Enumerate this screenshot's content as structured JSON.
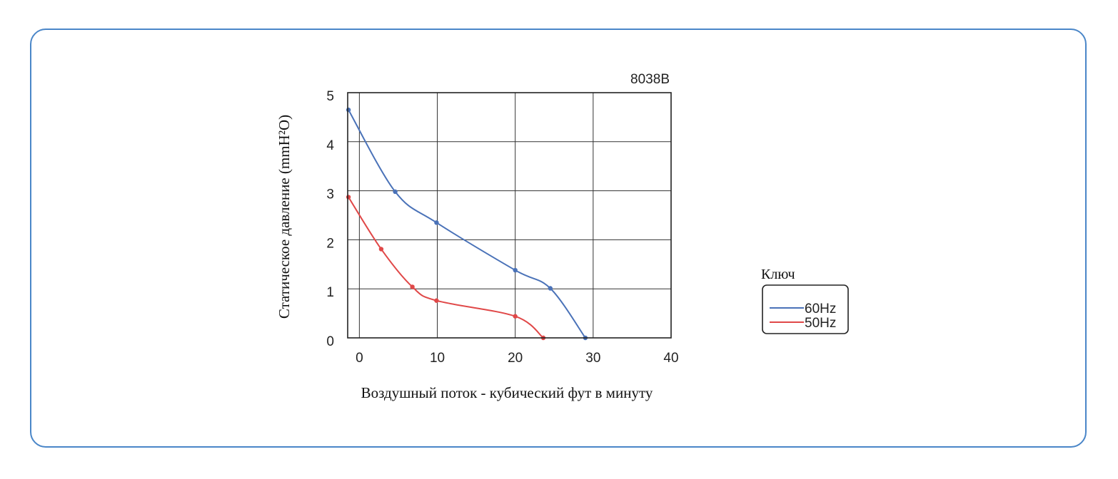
{
  "chart_data": {
    "type": "line",
    "title": "8038B",
    "xlabel": "Воздушный поток - кубический фут в минуту",
    "ylabel": "Статическое давление  (mmH²O)",
    "xlim": [
      -1.5,
      40
    ],
    "ylim": [
      0,
      5
    ],
    "xticks": [
      "0",
      "10",
      "20",
      "30",
      "40"
    ],
    "yticks": [
      "0",
      "1",
      "2",
      "3",
      "4",
      "5"
    ],
    "grid": true,
    "legend": {
      "title": "Ключ",
      "placement": "right"
    },
    "series": [
      {
        "name": "60Hz",
        "color": "#4a72b8",
        "points": [
          [
            -1.4,
            4.65
          ],
          [
            4.6,
            2.98
          ],
          [
            9.9,
            2.35
          ],
          [
            20.0,
            1.38
          ],
          [
            24.5,
            1.01
          ],
          [
            29.0,
            0.0
          ]
        ]
      },
      {
        "name": "50Hz",
        "color": "#e04848",
        "points": [
          [
            -1.4,
            2.87
          ],
          [
            2.8,
            1.81
          ],
          [
            6.8,
            1.04
          ],
          [
            9.9,
            0.76
          ],
          [
            20.0,
            0.44
          ],
          [
            23.6,
            0.0
          ]
        ]
      }
    ]
  }
}
